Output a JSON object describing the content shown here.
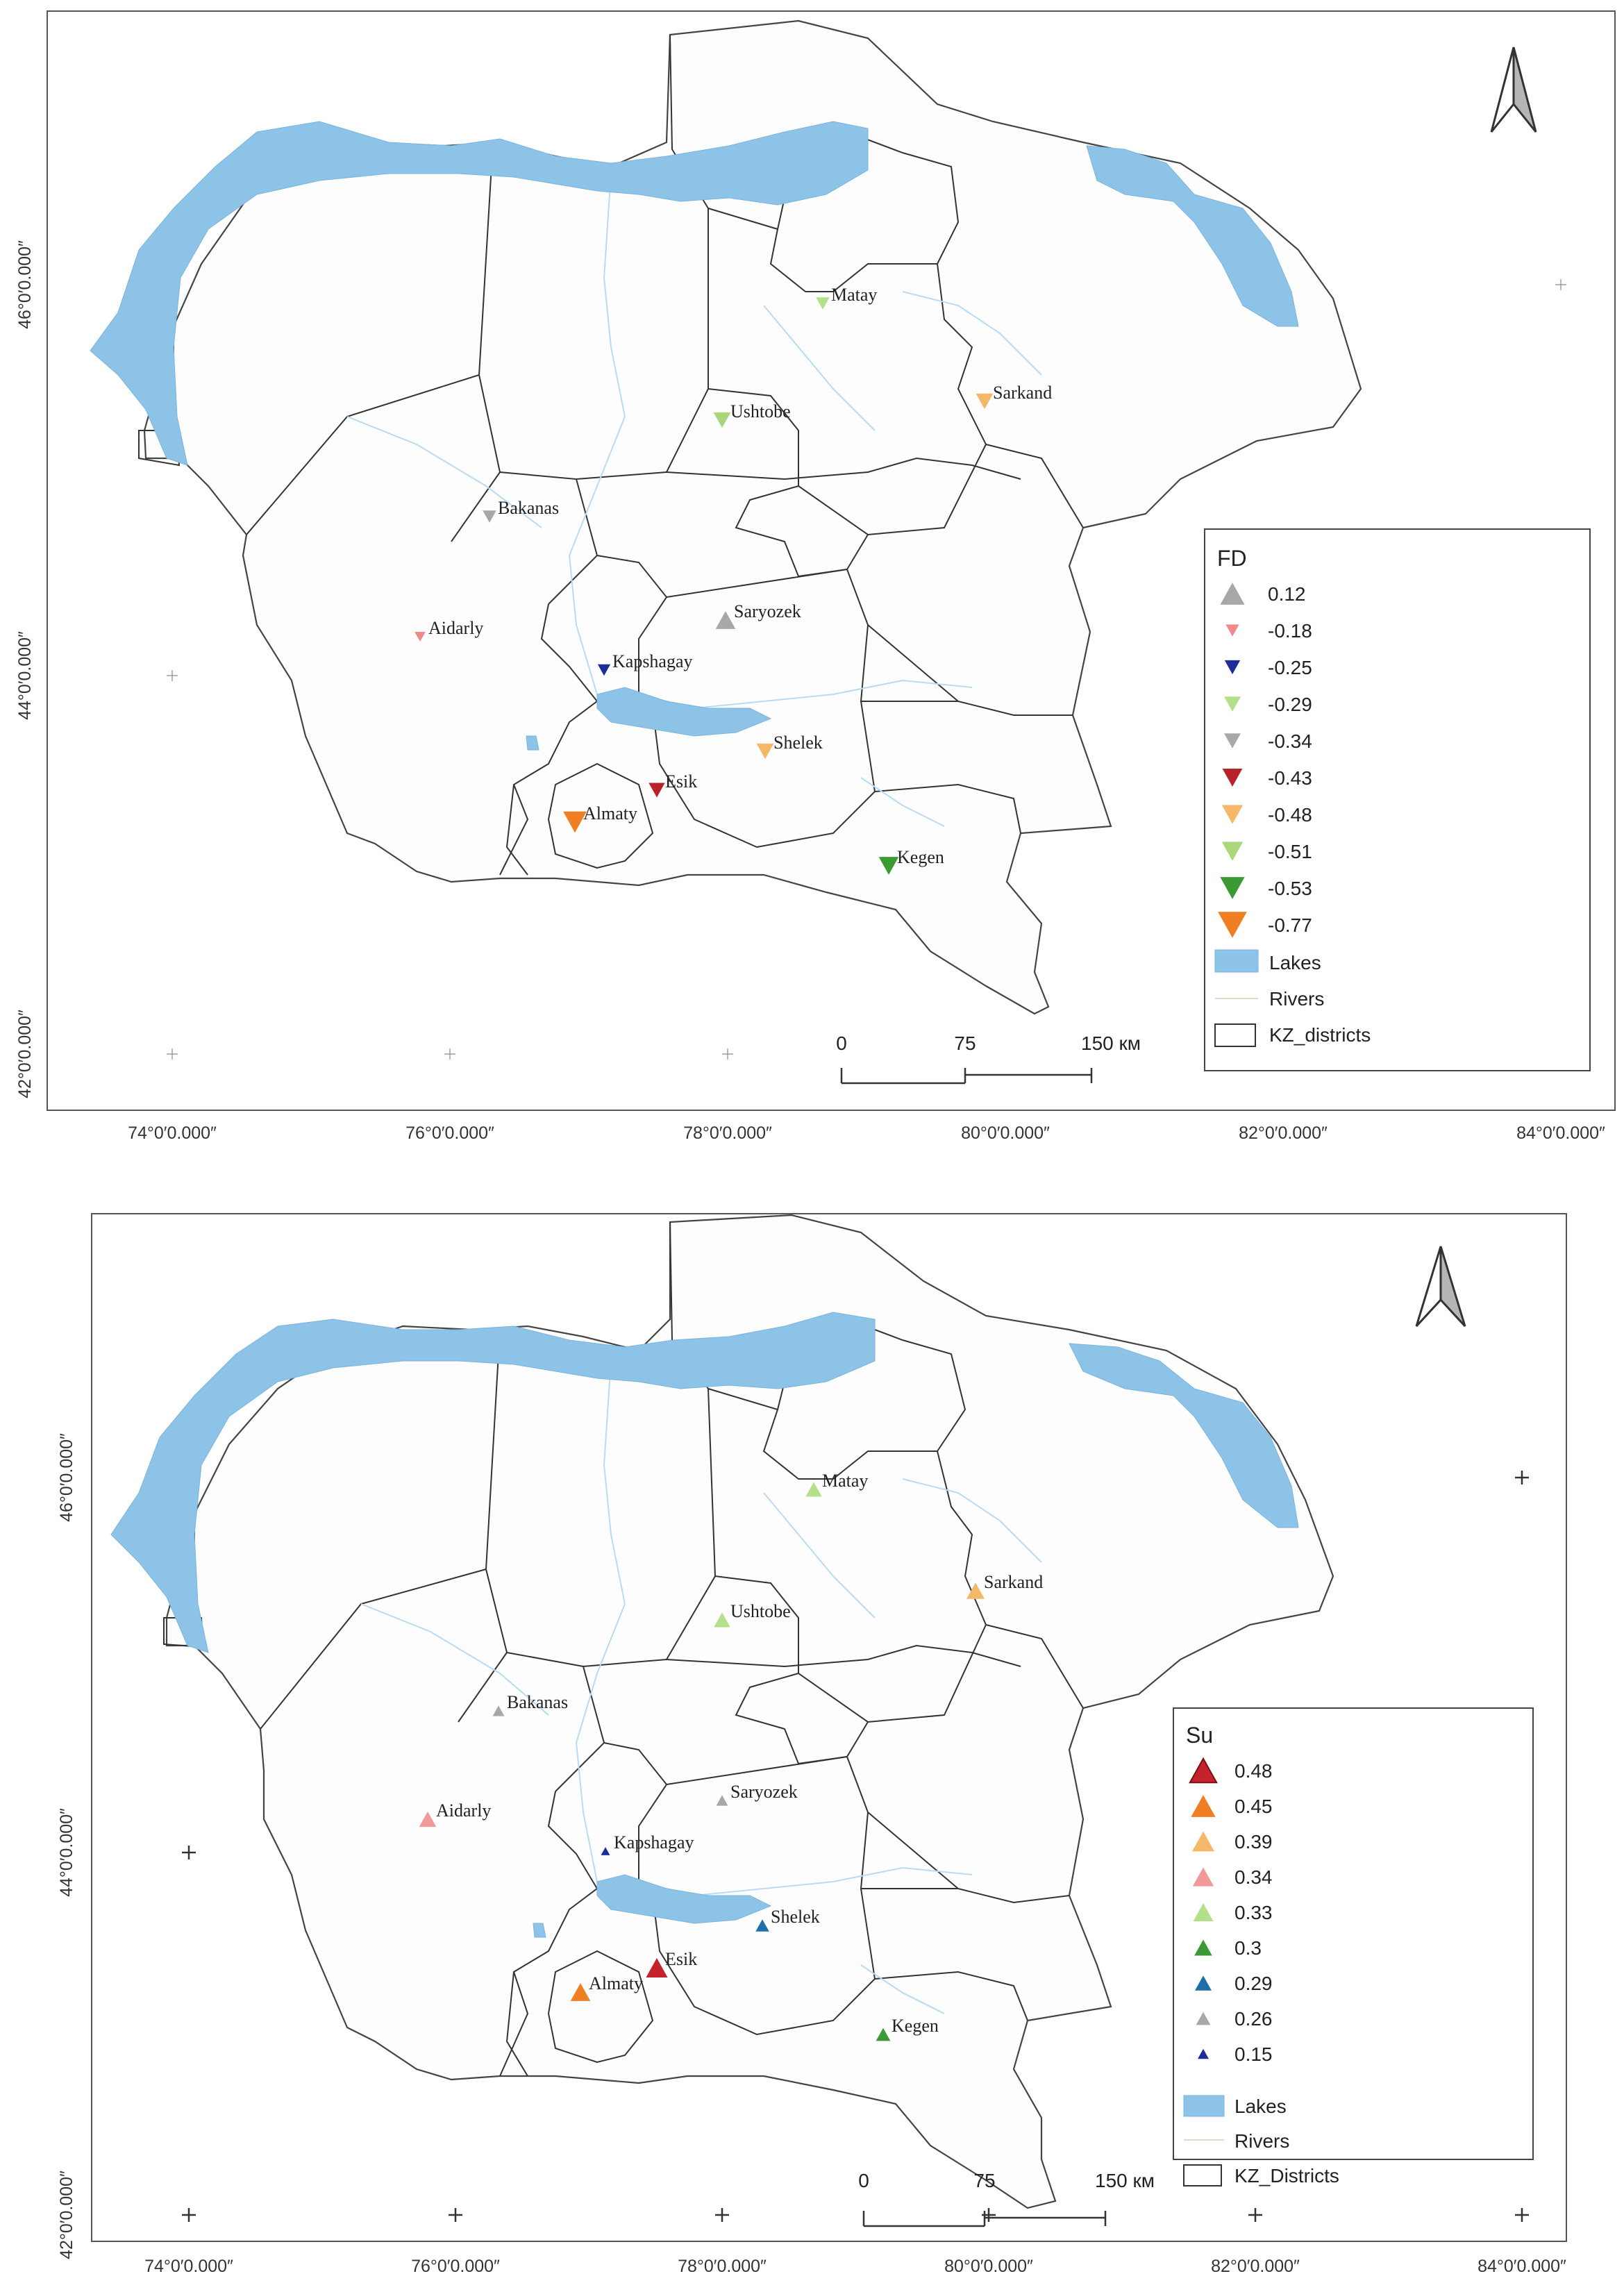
{
  "maps": [
    {
      "id": "fd",
      "legend": {
        "title": "FD",
        "items": [
          {
            "label": "0.12",
            "color": "#a8a8a8",
            "shape": "up",
            "size": 22
          },
          {
            "label": "-0.18",
            "color": "#f08a8a",
            "shape": "down",
            "size": 12
          },
          {
            "label": "-0.25",
            "color": "#1f2d99",
            "shape": "down",
            "size": 14
          },
          {
            "label": "-0.29",
            "color": "#b5e08a",
            "shape": "down",
            "size": 15
          },
          {
            "label": "-0.34",
            "color": "#a8a8a8",
            "shape": "down",
            "size": 15
          },
          {
            "label": "-0.43",
            "color": "#b8232a",
            "shape": "down",
            "size": 18
          },
          {
            "label": "-0.48",
            "color": "#f5b868",
            "shape": "down",
            "size": 19
          },
          {
            "label": "-0.51",
            "color": "#a8d87a",
            "shape": "down",
            "size": 19
          },
          {
            "label": "-0.53",
            "color": "#3c9a34",
            "shape": "down",
            "size": 22
          },
          {
            "label": "-0.77",
            "color": "#f07e22",
            "shape": "down",
            "size": 26
          }
        ],
        "extras": {
          "lakes": "Lakes",
          "rivers": "Rivers",
          "districts": "KZ_districts"
        }
      },
      "stations": [
        {
          "name": "Matay",
          "value": "-0.29"
        },
        {
          "name": "Sarkand",
          "value": "-0.48"
        },
        {
          "name": "Ushtobe",
          "value": "-0.51"
        },
        {
          "name": "Bakanas",
          "value": "-0.34"
        },
        {
          "name": "Saryozek",
          "value": "0.12"
        },
        {
          "name": "Aidarly",
          "value": "-0.18"
        },
        {
          "name": "Kapshagay",
          "value": "-0.25"
        },
        {
          "name": "Shelek",
          "value": "-0.48"
        },
        {
          "name": "Esik",
          "value": "-0.43"
        },
        {
          "name": "Almaty",
          "value": "-0.77"
        },
        {
          "name": "Kegen",
          "value": "-0.53"
        }
      ],
      "scale": {
        "zero": "0",
        "mid": "75",
        "end": "150 км"
      },
      "lon_labels": [
        "74°0′0.000″",
        "76°0′0.000″",
        "78°0′0.000″",
        "80°0′0.000″",
        "82°0′0.000″",
        "84°0′0.000″"
      ],
      "lat_labels": [
        "46°0′0.000″",
        "44°0′0.000″",
        "42°0′0.000″"
      ]
    },
    {
      "id": "su",
      "legend": {
        "title": "Su",
        "items": [
          {
            "label": "0.48",
            "color": "#c5222c",
            "shape": "up",
            "size": 24
          },
          {
            "label": "0.45",
            "color": "#f07e22",
            "shape": "up",
            "size": 22
          },
          {
            "label": "0.39",
            "color": "#f5b868",
            "shape": "up",
            "size": 20
          },
          {
            "label": "0.34",
            "color": "#f29a9a",
            "shape": "up",
            "size": 19
          },
          {
            "label": "0.33",
            "color": "#b5e08a",
            "shape": "up",
            "size": 18
          },
          {
            "label": "0.3",
            "color": "#3c9a34",
            "shape": "up",
            "size": 16
          },
          {
            "label": "0.29",
            "color": "#1e6fa8",
            "shape": "up",
            "size": 15
          },
          {
            "label": "0.26",
            "color": "#a8a8a8",
            "shape": "up",
            "size": 13
          },
          {
            "label": "0.15",
            "color": "#1f2d99",
            "shape": "up",
            "size": 10
          }
        ],
        "extras": {
          "lakes": "Lakes",
          "rivers": "Rivers",
          "districts": "KZ_Districts"
        }
      },
      "stations": [
        {
          "name": "Matay",
          "value": "0.33"
        },
        {
          "name": "Sarkand",
          "value": "0.39"
        },
        {
          "name": "Ushtobe",
          "value": "0.33"
        },
        {
          "name": "Bakanas",
          "value": "0.26"
        },
        {
          "name": "Saryozek",
          "value": "0.26"
        },
        {
          "name": "Aidarly",
          "value": "0.34"
        },
        {
          "name": "Kapshagay",
          "value": "0.15"
        },
        {
          "name": "Shelek",
          "value": "0.29"
        },
        {
          "name": "Esik",
          "value": "0.48"
        },
        {
          "name": "Almaty",
          "value": "0.45"
        },
        {
          "name": "Kegen",
          "value": "0.3"
        }
      ],
      "scale": {
        "zero": "0",
        "mid": "75",
        "end": "150 км"
      },
      "lon_labels": [
        "74°0′0.000″",
        "76°0′0.000″",
        "78°0′0.000″",
        "80°0′0.000″",
        "82°0′0.000″",
        "84°0′0.000″"
      ],
      "lat_labels": [
        "46°0′0.000″",
        "44°0′0.000″",
        "42°0′0.000″"
      ]
    }
  ]
}
